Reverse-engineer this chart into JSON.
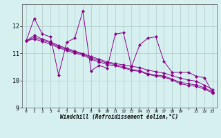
{
  "title": "",
  "xlabel": "Windchill (Refroidissement éolien,°C)",
  "ylabel": "",
  "background_color": "#d6f0f0",
  "grid_color": "#b0c8c8",
  "line_color": "#880088",
  "xlim": [
    -0.5,
    23.5
  ],
  "ylim": [
    9.0,
    12.8
  ],
  "xtick_labels": [
    "0",
    "1",
    "2",
    "3",
    "4",
    "5",
    "6",
    "7",
    "8",
    "9",
    "10",
    "11",
    "12",
    "13",
    "14",
    "15",
    "16",
    "17",
    "18",
    "19",
    "  ",
    "21",
    "22",
    "23"
  ],
  "ytick_labels": [
    "9",
    "10",
    "11",
    "12"
  ],
  "ytick_vals": [
    9,
    10,
    11,
    12
  ],
  "series": [
    [
      11.45,
      12.28,
      11.7,
      11.6,
      10.2,
      11.4,
      11.55,
      12.55,
      10.35,
      10.55,
      10.45,
      11.7,
      11.75,
      10.5,
      11.3,
      11.55,
      11.6,
      10.7,
      10.3,
      10.3,
      10.3,
      10.15,
      10.1,
      9.55
    ],
    [
      11.45,
      11.65,
      11.52,
      11.42,
      11.28,
      11.18,
      11.08,
      10.98,
      10.88,
      10.78,
      10.68,
      10.62,
      10.57,
      10.52,
      10.47,
      10.38,
      10.32,
      10.27,
      10.18,
      10.08,
      10.02,
      9.97,
      9.82,
      9.67
    ],
    [
      11.45,
      11.58,
      11.48,
      11.38,
      11.24,
      11.14,
      11.04,
      10.97,
      10.83,
      10.73,
      10.63,
      10.58,
      10.5,
      10.4,
      10.36,
      10.25,
      10.2,
      10.16,
      10.05,
      9.93,
      9.88,
      9.83,
      9.73,
      9.58
    ],
    [
      11.45,
      11.52,
      11.43,
      11.33,
      11.2,
      11.1,
      11.0,
      10.93,
      10.78,
      10.68,
      10.58,
      10.54,
      10.46,
      10.37,
      10.33,
      10.22,
      10.16,
      10.12,
      10.02,
      9.88,
      9.82,
      9.78,
      9.68,
      9.54
    ]
  ]
}
